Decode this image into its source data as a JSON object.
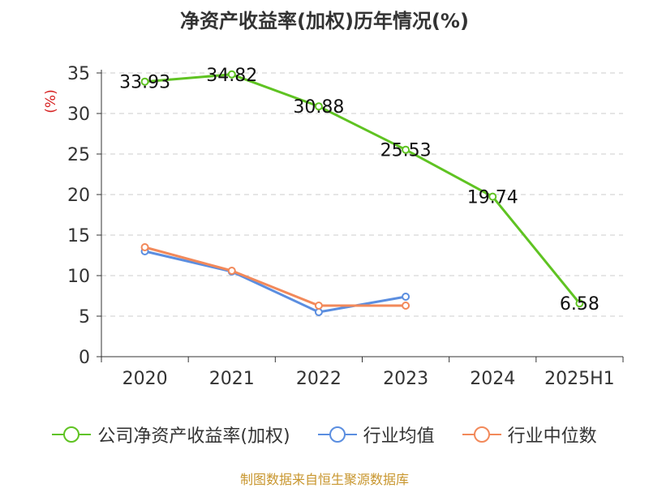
{
  "chart_data": {
    "type": "line",
    "title": "净资产收益率(加权)历年情况(%)",
    "ylabel": "(%)",
    "categories": [
      "2020",
      "2021",
      "2022",
      "2023",
      "2024",
      "2025H1"
    ],
    "ylim": [
      0,
      35
    ],
    "yticks": [
      "0",
      "5",
      "10",
      "15",
      "20",
      "25",
      "30",
      "35"
    ],
    "grid": "horizontal dashed",
    "legend_position": "bottom",
    "series": [
      {
        "name": "公司净资产收益率(加权)",
        "color": "#5fc322",
        "values": [
          33.93,
          34.82,
          30.88,
          25.53,
          19.74,
          6.58
        ],
        "labels": [
          "33.93",
          "34.82",
          "30.88",
          "25.53",
          "19.74",
          "6.58"
        ]
      },
      {
        "name": "行业均值",
        "color": "#5b8ee0",
        "values": [
          13.0,
          10.5,
          5.5,
          7.4,
          null,
          null
        ]
      },
      {
        "name": "行业中位数",
        "color": "#f2895a",
        "values": [
          13.5,
          10.6,
          6.3,
          6.3,
          null,
          null
        ]
      }
    ]
  },
  "source": "制图数据来自恒生聚源数据库"
}
